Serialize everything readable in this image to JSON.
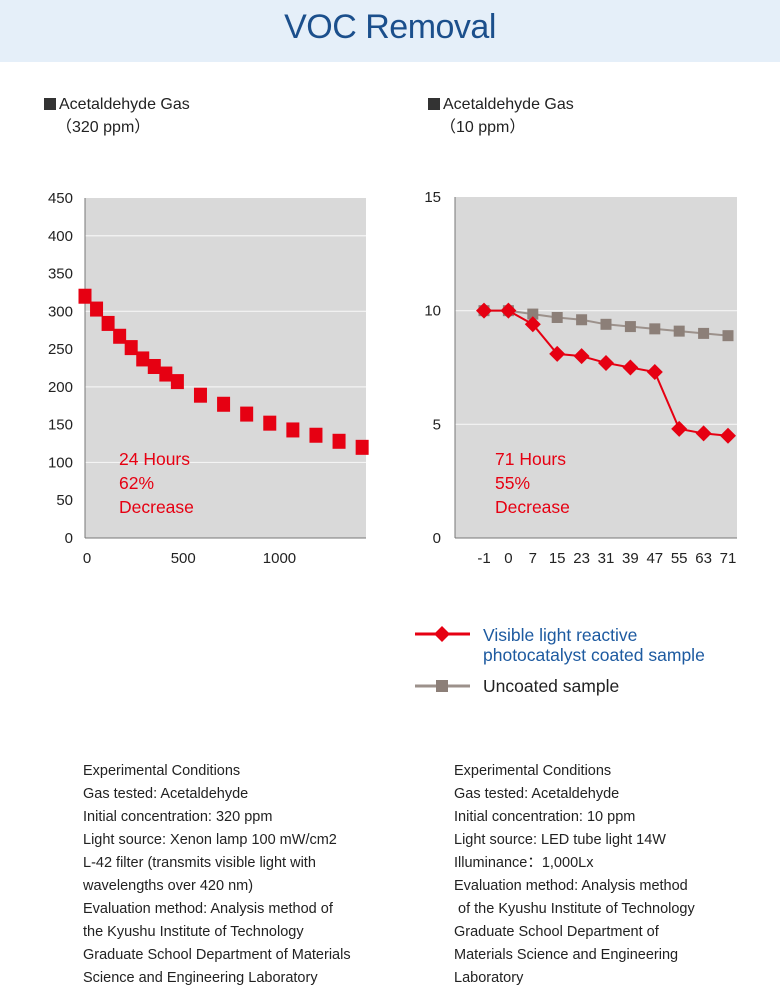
{
  "title": "VOC Removal",
  "colors": {
    "header_bg": "#e5eff9",
    "title": "#1b4f8c",
    "plot_bg": "#d9d9d9",
    "coated": "#e60012",
    "uncoated": "#8c7f78",
    "legend_coated_text": "#1d5aa0"
  },
  "chart_data": [
    {
      "type": "scatter",
      "heading": "Acetaldehyde Gas",
      "subheading": "（320 ppm）",
      "xlim": [
        0,
        1460
      ],
      "ylim": [
        0,
        450
      ],
      "xticks": [
        "0",
        "500",
        "1000"
      ],
      "xtick_values": [
        0,
        500,
        1000
      ],
      "yticks": [
        "0",
        "50",
        "100",
        "150",
        "200",
        "250",
        "300",
        "350",
        "400",
        "450"
      ],
      "ytick_values": [
        0,
        50,
        100,
        150,
        200,
        250,
        300,
        350,
        400,
        450
      ],
      "gridlines": [
        100,
        200,
        300,
        400
      ],
      "marker": "square",
      "series": [
        {
          "x": [
            0,
            60,
            120,
            180,
            240,
            300,
            360,
            420,
            480,
            600,
            720,
            840,
            960,
            1080,
            1200,
            1320,
            1440
          ],
          "y": [
            320,
            303,
            284,
            267,
            252,
            237,
            227,
            217,
            207,
            189,
            177,
            164,
            152,
            143,
            136,
            128,
            120
          ]
        }
      ],
      "annotation": [
        "24 Hours",
        "62%",
        "Decrease"
      ]
    },
    {
      "type": "line",
      "heading": "Acetaldehyde Gas",
      "subheading": "（10 ppm）",
      "categories": [
        "-1",
        "0",
        "7",
        "15",
        "23",
        "31",
        "39",
        "47",
        "55",
        "63",
        "71"
      ],
      "ylim": [
        0,
        15
      ],
      "yticks": [
        "0",
        "5",
        "10",
        "15"
      ],
      "ytick_values": [
        0,
        5,
        10,
        15
      ],
      "gridlines": [
        5,
        10
      ],
      "series": [
        {
          "name": "Uncoated sample",
          "marker": "square",
          "values": [
            10,
            10,
            9.85,
            9.7,
            9.6,
            9.4,
            9.3,
            9.2,
            9.1,
            9.0,
            8.9
          ]
        },
        {
          "name": "Visible light reactive photocatalyst coated sample",
          "marker": "diamond",
          "values": [
            10,
            10,
            9.4,
            8.1,
            8.0,
            7.7,
            7.5,
            7.3,
            4.8,
            4.6,
            4.5
          ]
        }
      ],
      "annotation": [
        "71 Hours",
        "55%",
        "Decrease"
      ]
    }
  ],
  "legend": {
    "coated_line1": "Visible light reactive",
    "coated_line2": "photocatalyst coated sample",
    "uncoated": "Uncoated sample"
  },
  "conditions_left": [
    "Experimental Conditions",
    "Gas tested: Acetaldehyde",
    "Initial concentration: 320 ppm",
    "Light source: Xenon lamp 100 mW/cm2",
    "L-42 filter (transmits visible light with",
    "wavelengths over 420 nm)",
    "Evaluation method: Analysis method of",
    "the Kyushu Institute of Technology",
    "Graduate School Department of Materials",
    "Science and Engineering Laboratory"
  ],
  "conditions_right": [
    "Experimental Conditions",
    "Gas tested: Acetaldehyde",
    "Initial concentration: 10 ppm",
    "Light source: LED tube light 14W",
    "Illuminance：1,000Lx",
    "Evaluation method: Analysis method",
    " of the Kyushu Institute of Technology",
    "Graduate School Department of",
    "Materials Science and Engineering",
    "Laboratory"
  ]
}
